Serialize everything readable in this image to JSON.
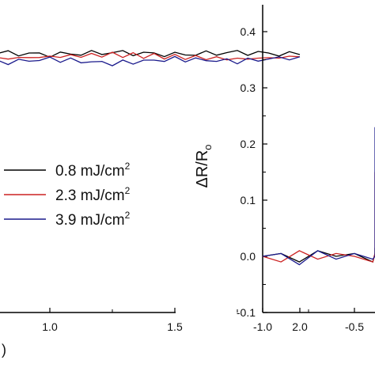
{
  "chart_data": [
    {
      "type": "line",
      "xlim": [
        0.0,
        2.0
      ],
      "x_ticks": [
        "1.0",
        "1.5",
        "2.0"
      ],
      "partial_label": ")",
      "legend": {
        "placement": "bottom-left",
        "entries": [
          {
            "value": "0.8 mJ/cm",
            "sup": "2",
            "color": "#000000"
          },
          {
            "value": "2.3 mJ/cm",
            "sup": "2",
            "color": "#cc2222"
          },
          {
            "value": "3.9 mJ/cm",
            "sup": "2",
            "color": "#1a1a8c"
          }
        ]
      },
      "series": [
        {
          "color": "#000000",
          "x": [
            0.0,
            0.25,
            0.5,
            0.75,
            1.0,
            1.25,
            1.5,
            1.75,
            2.0
          ],
          "y": [
            0.0,
            0.01,
            0.02,
            0.01,
            0.0,
            0.01,
            0.0,
            0.01,
            0.0
          ]
        },
        {
          "color": "#cc2222",
          "x": [
            0.0,
            0.25,
            0.5,
            0.75,
            1.0,
            1.25,
            1.5,
            1.75,
            2.0
          ],
          "y": [
            -0.03,
            -0.02,
            0.0,
            -0.02,
            -0.01,
            0.0,
            -0.01,
            -0.02,
            -0.01
          ]
        },
        {
          "color": "#1a1a8c",
          "x": [
            0.0,
            0.25,
            0.5,
            0.75,
            1.0,
            1.25,
            1.5,
            1.75,
            2.0
          ],
          "y": [
            -0.05,
            -0.03,
            -0.01,
            -0.04,
            -0.02,
            -0.04,
            -0.02,
            -0.03,
            -0.01
          ]
        }
      ]
    },
    {
      "type": "line",
      "ylabel": "ΔR/R",
      "ylabel_sub": "o",
      "xlim": [
        -1.0,
        0.0
      ],
      "ylim": [
        -0.1,
        0.45
      ],
      "x_ticks": [
        "-1.0",
        "-0.5"
      ],
      "y_ticks": [
        "-0.1",
        "0.0",
        "0.1",
        "0.2",
        "0.3",
        "0.4"
      ],
      "series": [
        {
          "color": "#000000",
          "x": [
            -1.0,
            -0.9,
            -0.8,
            -0.7,
            -0.6,
            -0.5,
            -0.4,
            -0.3,
            -0.2,
            -0.1,
            -0.05
          ],
          "y": [
            0.0,
            0.005,
            -0.01,
            0.01,
            0.0,
            0.005,
            -0.01,
            0.005,
            0.01,
            0.0,
            0.015
          ]
        },
        {
          "color": "#cc2222",
          "x": [
            -1.0,
            -0.9,
            -0.8,
            -0.7,
            -0.6,
            -0.5,
            -0.4,
            -0.3,
            -0.2,
            -0.15,
            -0.1,
            -0.07
          ],
          "y": [
            0.0,
            -0.01,
            0.01,
            -0.005,
            0.005,
            0.0,
            -0.01,
            0.005,
            0.0,
            0.05,
            0.11,
            0.15
          ]
        },
        {
          "color": "#1a1a8c",
          "x": [
            -1.0,
            -0.9,
            -0.8,
            -0.7,
            -0.6,
            -0.5,
            -0.4,
            -0.3,
            -0.2,
            -0.15,
            -0.1,
            -0.06
          ],
          "y": [
            0.0,
            0.005,
            -0.015,
            0.01,
            -0.005,
            0.005,
            -0.005,
            0.0,
            0.005,
            0.07,
            0.16,
            0.23
          ]
        }
      ]
    }
  ]
}
